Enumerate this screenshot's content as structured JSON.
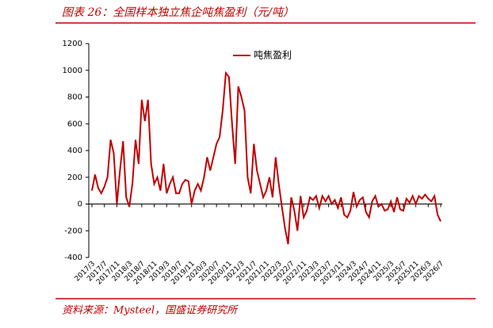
{
  "chart_data": {
    "type": "line",
    "title": "图表 26：全国样本独立焦企吨焦盈利（元/吨）",
    "source": "资料来源：Mysteel，国盛证券研究所",
    "categories": [
      "2017/3",
      null,
      null,
      null,
      "2017/7",
      null,
      null,
      null,
      "2017/11",
      null,
      null,
      null,
      "2018/3",
      null,
      null,
      null,
      "2018/7",
      null,
      null,
      null,
      "2018/11",
      null,
      null,
      null,
      "2019/3",
      null,
      null,
      null,
      "2019/7",
      null,
      null,
      null,
      "2019/11",
      null,
      null,
      null,
      "2020/3",
      null,
      null,
      null,
      "2020/7",
      null,
      null,
      null,
      "2020/11",
      null,
      null,
      null,
      "2021/3",
      null,
      null,
      null,
      "2021/7",
      null,
      null,
      null,
      "2021/11",
      null,
      null,
      null,
      "2022/3",
      null,
      null,
      null,
      "2022/7",
      null,
      null,
      null,
      "2022/11",
      null,
      null,
      null,
      "2023/3",
      null,
      null,
      null,
      "2023/7",
      null,
      null,
      null,
      "2023/11",
      null,
      null,
      null,
      "2024/3",
      null,
      null,
      null,
      "2024/7",
      null,
      null,
      null,
      "2024/11",
      null,
      null,
      null,
      "2025/3",
      null,
      null,
      null,
      "2025/7",
      null,
      null,
      null,
      "2025/11",
      null,
      null,
      null,
      "2026/3",
      null,
      null,
      null,
      "2026/7"
    ],
    "series": [
      {
        "name": "吨焦盈利",
        "color": "#c00000",
        "values": [
          100,
          220,
          120,
          80,
          130,
          200,
          480,
          380,
          0,
          250,
          470,
          50,
          -20,
          150,
          480,
          300,
          780,
          620,
          780,
          300,
          150,
          200,
          100,
          300,
          80,
          150,
          200,
          80,
          80,
          150,
          180,
          170,
          0,
          100,
          150,
          100,
          200,
          350,
          250,
          350,
          450,
          500,
          700,
          980,
          950,
          600,
          300,
          880,
          800,
          700,
          200,
          80,
          450,
          250,
          150,
          50,
          100,
          200,
          50,
          350,
          150,
          -20,
          -180,
          -300,
          50,
          -50,
          -200,
          60,
          -100,
          -50,
          50,
          30,
          60,
          -30,
          60,
          20,
          60,
          0,
          30,
          -30,
          50,
          -80,
          -100,
          -50,
          90,
          -20,
          30,
          50,
          -60,
          -100,
          20,
          60,
          -20,
          0,
          -50,
          -40,
          20,
          -60,
          50,
          -40,
          -50,
          40,
          10,
          60,
          0,
          60,
          40,
          70,
          40,
          20,
          60,
          -80,
          -130
        ]
      }
    ],
    "ylim": [
      -400,
      1200
    ],
    "yticks": [
      -400,
      -200,
      0,
      200,
      400,
      600,
      800,
      1000,
      1200
    ]
  }
}
